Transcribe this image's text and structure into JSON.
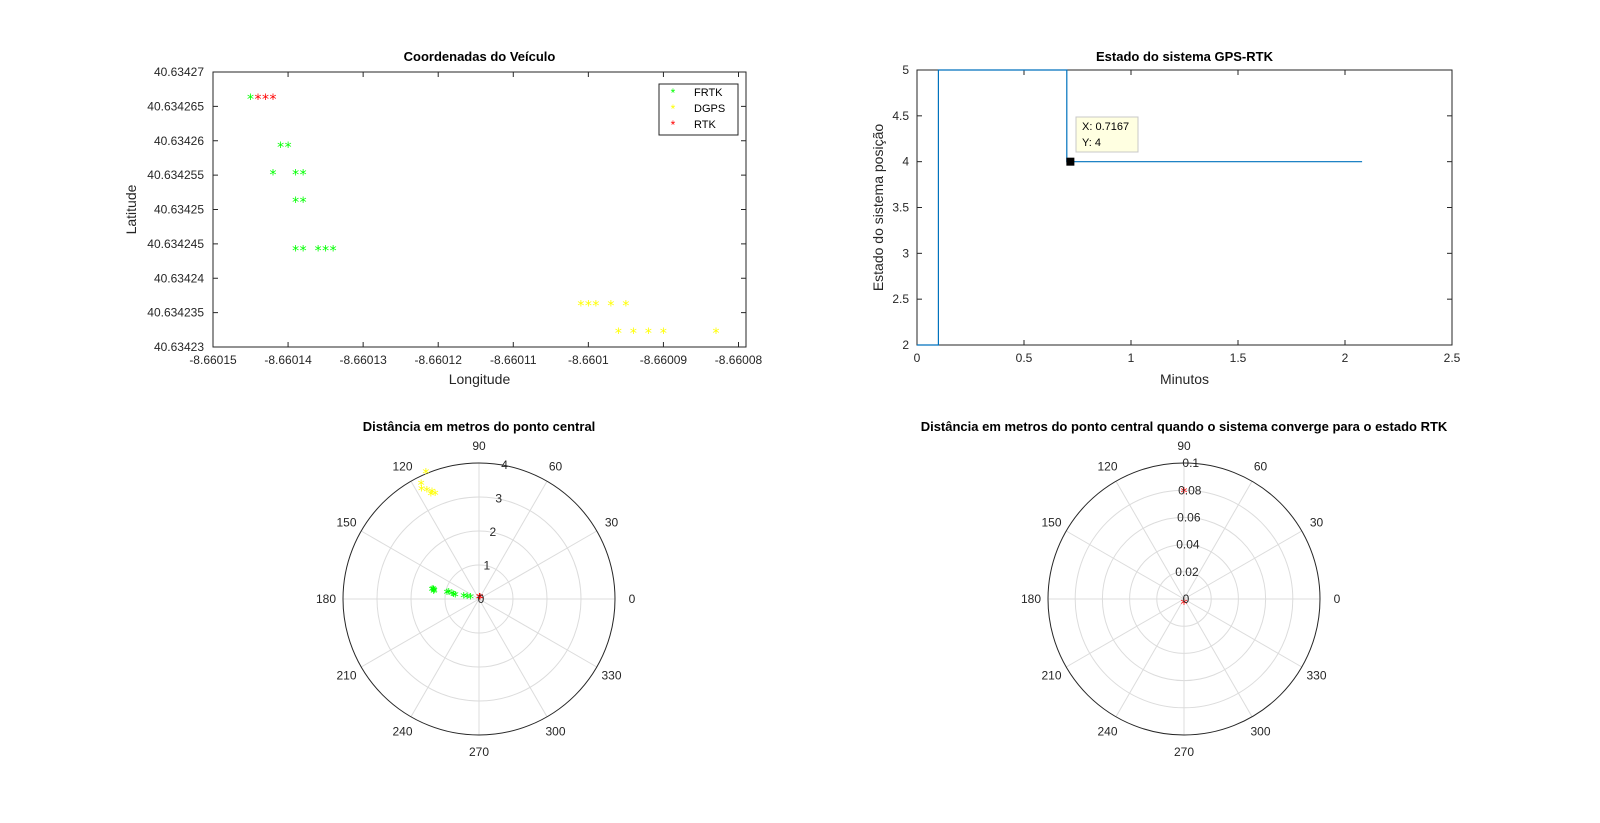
{
  "chart_data": [
    {
      "type": "scatter",
      "title": "Coordenadas do Veículo",
      "xlabel": "Longitude",
      "ylabel": "Latitude",
      "xlim": [
        -8.66015,
        -8.660079
      ],
      "ylim": [
        40.63423,
        40.63427
      ],
      "xticks": [
        "-8.66015",
        "-8.66014",
        "-8.66013",
        "-8.66012",
        "-8.66011",
        "-8.6601",
        "-8.66009",
        "-8.66008"
      ],
      "yticks": [
        "40.63423",
        "40.634235",
        "40.63424",
        "40.634245",
        "40.63425",
        "40.634255",
        "40.63426",
        "40.634265",
        "40.63427"
      ],
      "legend_position": "top-right",
      "series": [
        {
          "name": "FRTK",
          "color": "#00ff00",
          "marker": "*",
          "points": [
            [
              -8.660145,
              40.634266
            ],
            [
              -8.660141,
              40.634259
            ],
            [
              -8.66014,
              40.634259
            ],
            [
              -8.660142,
              40.634255
            ],
            [
              -8.660139,
              40.634255
            ],
            [
              -8.660138,
              40.634255
            ],
            [
              -8.660139,
              40.634251
            ],
            [
              -8.660138,
              40.634251
            ],
            [
              -8.660139,
              40.634244
            ],
            [
              -8.660138,
              40.634244
            ],
            [
              -8.660136,
              40.634244
            ],
            [
              -8.660135,
              40.634244
            ],
            [
              -8.660134,
              40.634244
            ]
          ]
        },
        {
          "name": "DGPS",
          "color": "#ffff00",
          "marker": "*",
          "points": [
            [
              -8.660101,
              40.634236
            ],
            [
              -8.6601,
              40.634236
            ],
            [
              -8.660099,
              40.634236
            ],
            [
              -8.660097,
              40.634236
            ],
            [
              -8.660095,
              40.634236
            ],
            [
              -8.660096,
              40.634232
            ],
            [
              -8.660094,
              40.634232
            ],
            [
              -8.660092,
              40.634232
            ],
            [
              -8.66009,
              40.634232
            ],
            [
              -8.660083,
              40.634232
            ]
          ]
        },
        {
          "name": "RTK",
          "color": "#ff0000",
          "marker": "*",
          "points": [
            [
              -8.660144,
              40.634266
            ],
            [
              -8.660143,
              40.634266
            ],
            [
              -8.660142,
              40.634266
            ]
          ]
        }
      ]
    },
    {
      "type": "line",
      "title": "Estado do sistema GPS-RTK",
      "xlabel": "Minutos",
      "ylabel": "Estado do sistema posição",
      "xlim": [
        0,
        2.5
      ],
      "ylim": [
        2,
        5
      ],
      "xticks": [
        "0",
        "0.5",
        "1",
        "1.5",
        "2",
        "2.5"
      ],
      "yticks": [
        "2",
        "2.5",
        "3",
        "3.5",
        "4",
        "4.5",
        "5"
      ],
      "color": "#0072bd",
      "x": [
        0,
        0.1,
        0.1,
        0.7,
        0.7,
        2.08
      ],
      "y": [
        2,
        2,
        5,
        5,
        4,
        4
      ],
      "datatip": {
        "x": 0.7167,
        "y": 4,
        "text_x": "X: 0.7167",
        "text_y": "Y: 4"
      }
    },
    {
      "type": "scatter",
      "subtype": "polar",
      "title": "Distância em metros do ponto central",
      "rmax": 4,
      "rticks": [
        "0",
        "1",
        "2",
        "3",
        "4"
      ],
      "thetaticks": [
        "0",
        "30",
        "60",
        "90",
        "120",
        "150",
        "180",
        "210",
        "240",
        "270",
        "300",
        "330"
      ],
      "series": [
        {
          "name": "DGPS",
          "color": "#ffff00",
          "marker": "*",
          "points": [
            [
              113,
              4.05
            ],
            [
              117,
              3.75
            ],
            [
              118,
              3.6
            ],
            [
              116,
              3.5
            ],
            [
              114,
              3.4
            ],
            [
              115,
              3.35
            ],
            [
              113,
              3.3
            ]
          ]
        },
        {
          "name": "FRTK",
          "color": "#00ff00",
          "marker": "*",
          "points": [
            [
              170,
              1.37
            ],
            [
              171,
              1.35
            ],
            [
              172,
              1.33
            ],
            [
              173,
              1.34
            ],
            [
              171,
              1.4
            ],
            [
              172,
              0.95
            ],
            [
              171,
              0.9
            ],
            [
              173,
              0.8
            ],
            [
              174,
              0.75
            ],
            [
              175,
              0.7
            ],
            [
              176,
              0.45
            ],
            [
              178,
              0.35
            ],
            [
              179,
              0.25
            ]
          ]
        },
        {
          "name": "RTK",
          "color": "#ff0000",
          "marker": "*",
          "points": [
            [
              0,
              0.02
            ],
            [
              0,
              0.03
            ],
            [
              0,
              0.01
            ]
          ]
        }
      ]
    },
    {
      "type": "scatter",
      "subtype": "polar",
      "title": "Distância em metros do ponto central quando o sistema converge para o estado RTK",
      "rmax": 0.1,
      "rticks": [
        "0",
        "0.02",
        "0.04",
        "0.06",
        "0.08",
        "0.1"
      ],
      "thetaticks": [
        "0",
        "30",
        "60",
        "90",
        "120",
        "150",
        "180",
        "210",
        "240",
        "270",
        "300",
        "330"
      ],
      "series": [
        {
          "name": "RTK",
          "color": "#ff0000",
          "marker": "*",
          "points": [
            [
              90,
              0.078
            ],
            [
              270,
              0.004
            ]
          ]
        }
      ]
    }
  ]
}
